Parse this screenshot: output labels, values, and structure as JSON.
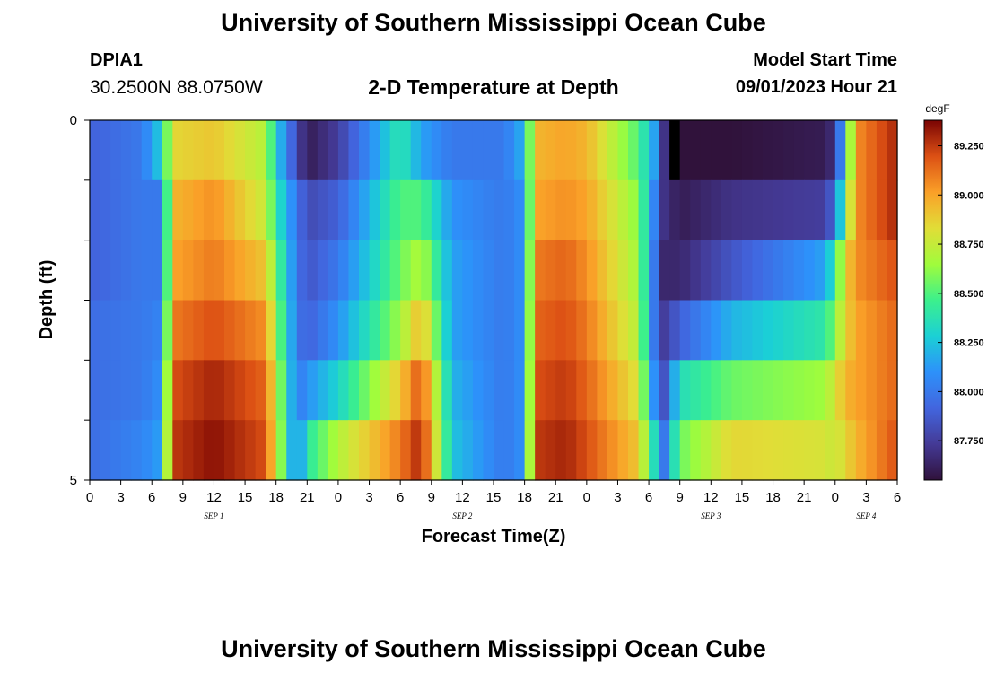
{
  "header": {
    "title": "University of Southern Mississippi Ocean Cube",
    "station_id": "DPIA1",
    "coordinates": "30.2500N  88.0750W",
    "subtitle": "2-D Temperature at Depth",
    "model_start_label": "Model Start Time",
    "model_start_value": "09/01/2023 Hour 21"
  },
  "footer": {
    "title": "University of Southern Mississippi Ocean Cube"
  },
  "chart_data": {
    "type": "heatmap",
    "title": "2-D Temperature at Depth",
    "xlabel": "Forecast Time(Z)",
    "ylabel": "Depth (ft)",
    "x_ticks": [
      "0",
      "3",
      "6",
      "9",
      "12",
      "15",
      "18",
      "21",
      "0",
      "3",
      "6",
      "9",
      "12",
      "15",
      "18",
      "21",
      "0",
      "3",
      "6",
      "9",
      "12",
      "15",
      "18",
      "21",
      "0",
      "3",
      "6"
    ],
    "x_range_hours": [
      0,
      78
    ],
    "day_labels": [
      {
        "label": "SEP 1",
        "hour": 12
      },
      {
        "label": "SEP 2",
        "hour": 36
      },
      {
        "label": "SEP 3",
        "hour": 60
      },
      {
        "label": "SEP 4",
        "hour": 75
      }
    ],
    "y_ticks": [
      "0",
      "5"
    ],
    "y_range_ft": [
      0,
      5
    ],
    "depth_layers": 6,
    "colorbar": {
      "unit": "degF",
      "min": 87.55,
      "max": 89.38,
      "tick_labels": [
        "89.250",
        "89.000",
        "88.750",
        "88.500",
        "88.250",
        "88.000",
        "87.750"
      ],
      "tick_values": [
        89.25,
        89.0,
        88.75,
        88.5,
        88.25,
        88.0,
        87.75
      ]
    },
    "time_keyframes_hours": [
      0,
      5,
      7,
      8,
      12,
      17,
      18,
      20,
      21,
      24,
      30,
      32,
      35,
      40,
      42,
      43,
      46,
      48,
      53,
      54.5,
      55.5,
      57,
      62,
      71,
      72,
      73,
      74,
      78
    ],
    "layer_keyframe_values": [
      [
        87.9,
        88.0,
        88.3,
        88.85,
        88.9,
        88.7,
        88.3,
        87.8,
        87.6,
        87.75,
        88.4,
        88.15,
        88.0,
        88.0,
        88.2,
        88.95,
        89.0,
        88.95,
        88.5,
        88.15,
        87.7,
        87.5,
        87.55,
        87.6,
        87.7,
        88.3,
        89.05,
        89.3
      ],
      [
        87.9,
        88.0,
        88.0,
        88.95,
        89.05,
        88.75,
        88.4,
        88.0,
        87.8,
        87.9,
        88.5,
        88.5,
        88.1,
        88.0,
        88.1,
        89.0,
        89.05,
        89.0,
        88.6,
        88.05,
        87.7,
        87.6,
        87.7,
        87.75,
        87.95,
        88.55,
        89.05,
        89.3
      ],
      [
        87.9,
        88.0,
        88.0,
        89.0,
        89.1,
        88.9,
        88.55,
        88.0,
        87.85,
        88.0,
        88.55,
        88.7,
        88.15,
        88.0,
        88.1,
        89.1,
        89.15,
        89.05,
        88.65,
        88.0,
        87.65,
        87.65,
        87.85,
        88.15,
        88.4,
        88.85,
        89.05,
        89.2
      ],
      [
        87.95,
        88.0,
        88.05,
        89.1,
        89.2,
        89.05,
        88.65,
        88.0,
        87.9,
        88.1,
        88.65,
        88.95,
        88.15,
        88.0,
        88.1,
        89.15,
        89.2,
        89.1,
        88.7,
        88.0,
        87.75,
        87.9,
        88.2,
        88.4,
        88.6,
        88.85,
        89.0,
        89.15
      ],
      [
        87.95,
        88.0,
        88.1,
        89.2,
        89.3,
        89.15,
        88.75,
        88.0,
        88.1,
        88.3,
        88.9,
        89.2,
        88.2,
        88.0,
        88.1,
        89.2,
        89.25,
        89.15,
        88.8,
        88.1,
        87.85,
        88.35,
        88.55,
        88.65,
        88.8,
        88.95,
        89.0,
        89.15
      ],
      [
        87.95,
        88.05,
        88.15,
        89.25,
        89.35,
        89.2,
        88.8,
        88.0,
        88.4,
        88.7,
        89.1,
        89.3,
        88.25,
        88.0,
        88.1,
        89.25,
        89.3,
        89.2,
        88.9,
        88.35,
        88.0,
        88.55,
        88.85,
        88.8,
        88.75,
        88.85,
        88.95,
        89.2
      ]
    ],
    "missing_cells": [
      {
        "hour": 56.5,
        "layer": 0
      }
    ]
  }
}
